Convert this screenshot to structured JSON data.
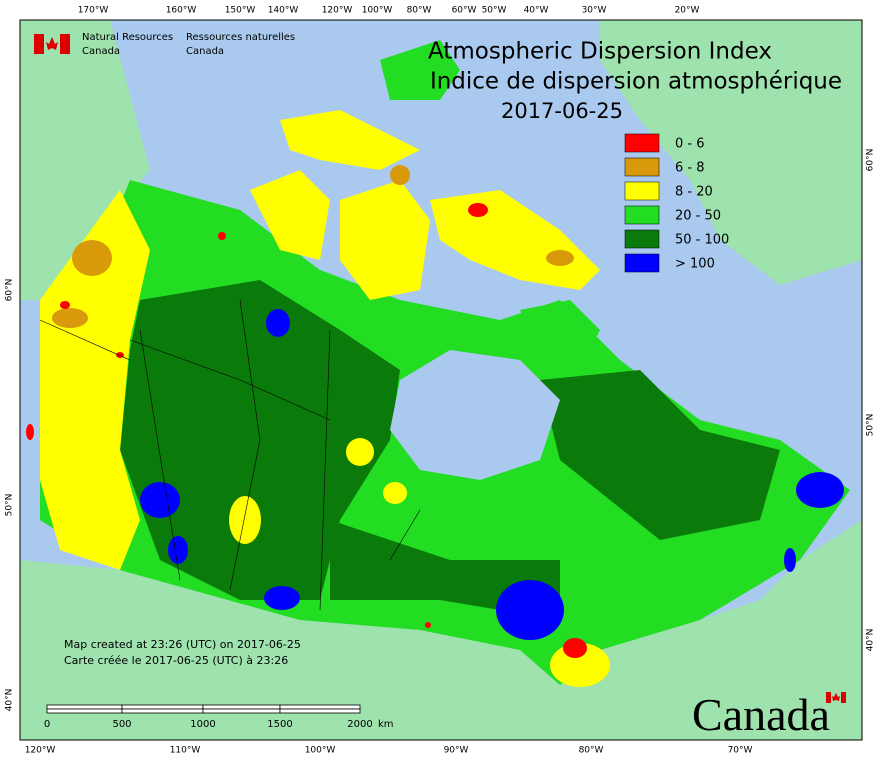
{
  "header": {
    "org_en": [
      "Natural Resources",
      "Canada"
    ],
    "org_fr": [
      "Ressources naturelles",
      "Canada"
    ]
  },
  "title": {
    "line1": "Atmospheric Dispersion Index",
    "line2": "Indice de dispersion atmosphérique",
    "date": "2017-06-25"
  },
  "legend": [
    {
      "label": "0 - 6",
      "color": "#ff0000"
    },
    {
      "label": "6 - 8",
      "color": "#d89a0a"
    },
    {
      "label": "8 - 20",
      "color": "#ffff00"
    },
    {
      "label": "20 - 50",
      "color": "#22dd22"
    },
    {
      "label": "50 - 100",
      "color": "#0a7a0a"
    },
    {
      "label": "> 100",
      "color": "#0000ff"
    }
  ],
  "graticule": {
    "top": [
      "170°W",
      "160°W",
      "150°W",
      "140°W",
      "120°W",
      "100°W",
      "80°W",
      "60°W",
      "50°W",
      "40°W",
      "30°W",
      "20°W"
    ],
    "bottom": [
      "120°W",
      "110°W",
      "100°W",
      "90°W",
      "80°W",
      "70°W"
    ],
    "left": [
      "60°N",
      "50°N",
      "40°N"
    ],
    "right": [
      "60°N",
      "50°N",
      "40°N"
    ]
  },
  "notes": [
    "Map created at 23:26 (UTC) on 2017-06-25",
    "Carte créée le 2017-06-25 (UTC) à 23:26"
  ],
  "scale_bar": {
    "ticks": [
      "0",
      "500",
      "1000",
      "1500",
      "2000"
    ],
    "unit": "km"
  },
  "wordmark": "Canada"
}
